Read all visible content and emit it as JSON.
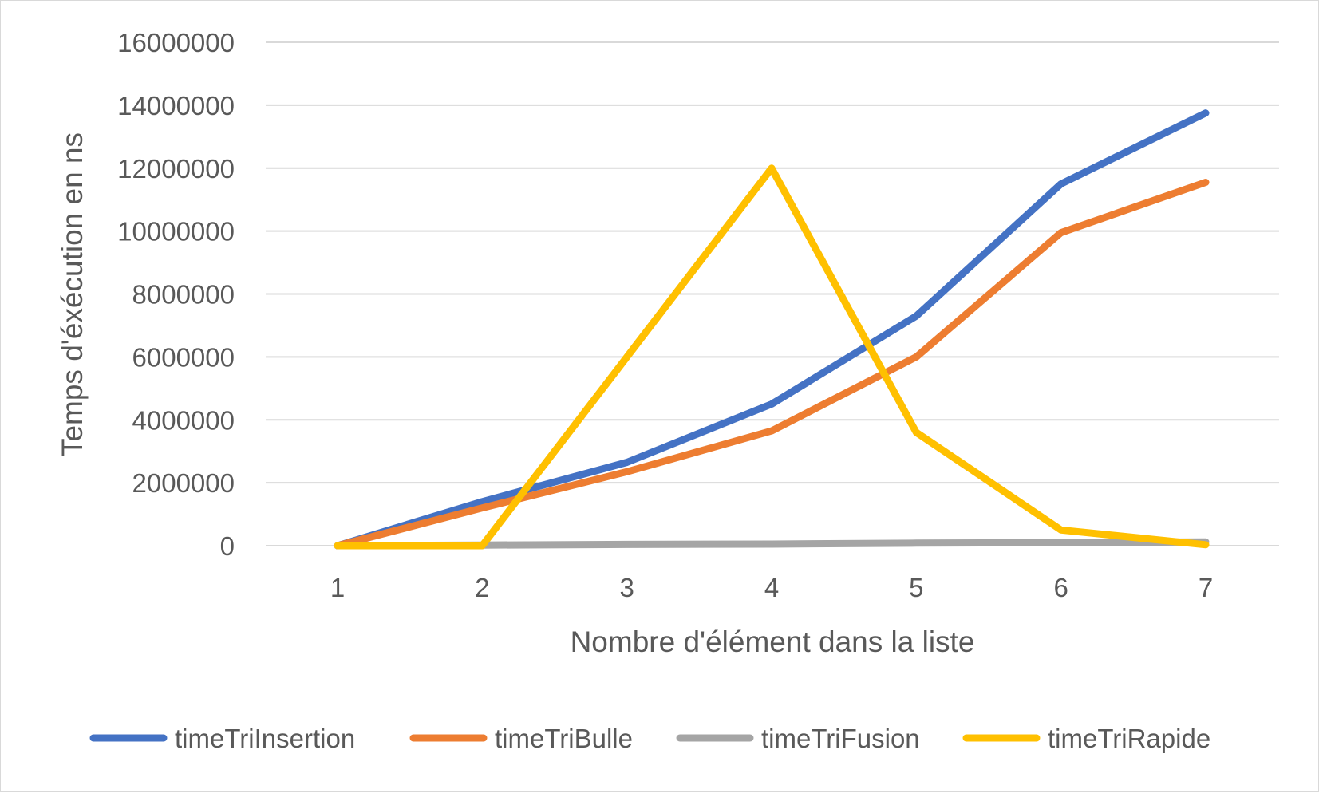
{
  "chart_data": {
    "type": "line",
    "title": "",
    "xlabel": "Nombre d'élément dans la liste",
    "ylabel": "Temps d'éxécution en ns",
    "categories": [
      "1",
      "2",
      "3",
      "4",
      "5",
      "6",
      "7"
    ],
    "ylim": [
      0,
      16000000
    ],
    "yticks": [
      "0",
      "2000000",
      "4000000",
      "6000000",
      "8000000",
      "10000000",
      "12000000",
      "14000000",
      "16000000"
    ],
    "grid": true,
    "legend_position": "bottom",
    "series": [
      {
        "name": "timeTriInsertion",
        "color": "#4472c4",
        "values": [
          0,
          1400000,
          2650000,
          4500000,
          7300000,
          11500000,
          13750000
        ]
      },
      {
        "name": "timeTriBulle",
        "color": "#ed7d31",
        "values": [
          0,
          1200000,
          2350000,
          3650000,
          6000000,
          9950000,
          11550000
        ]
      },
      {
        "name": "timeTriFusion",
        "color": "#a5a5a5",
        "values": [
          0,
          20000,
          40000,
          50000,
          80000,
          100000,
          120000
        ]
      },
      {
        "name": "timeTriRapide",
        "color": "#ffc000",
        "values": [
          0,
          0,
          6000000,
          12000000,
          3600000,
          500000,
          30000
        ]
      }
    ]
  }
}
